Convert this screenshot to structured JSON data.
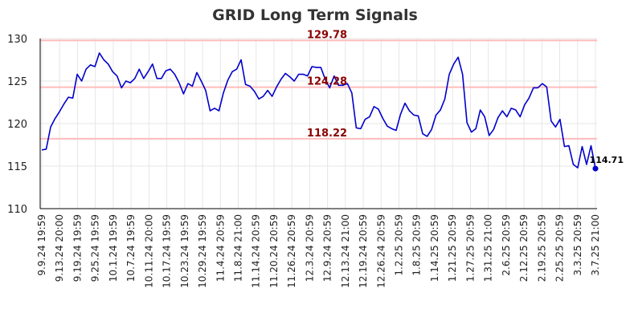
{
  "chart_data": {
    "type": "line",
    "title": "GRID Long Term Signals",
    "xlabel": "",
    "ylabel": "",
    "ylim": [
      110,
      130
    ],
    "yticks": [
      110,
      115,
      120,
      125,
      130
    ],
    "grid": true,
    "colors": {
      "line": "#0000cc",
      "reference_line": "#ffbbbb",
      "reference_label": "#8b0000",
      "grid": "#e6e6e6",
      "axis": "#000000"
    },
    "x_tick_labels": [
      "9.9.24 19:59",
      "9.13.24 20:00",
      "9.19.24 19:59",
      "9.25.24 19:59",
      "10.1.24 19:59",
      "10.7.24 19:59",
      "10.11.24 20:00",
      "10.17.24 19:59",
      "10.23.24 19:59",
      "10.29.24 19:59",
      "11.4.24 20:59",
      "11.8.24 21:00",
      "11.14.24 20:59",
      "11.20.24 20:59",
      "11.26.24 20:59",
      "12.3.24 20:59",
      "12.9.24 20:59",
      "12.13.24 21:00",
      "12.19.24 20:59",
      "12.26.24 20:59",
      "1.2.25 20:59",
      "1.8.25 20:59",
      "1.14.25 20:59",
      "1.21.25 20:59",
      "1.27.25 20:59",
      "1.31.25 21:00",
      "2.6.25 20:59",
      "2.12.25 20:59",
      "2.19.25 20:59",
      "2.25.25 20:59",
      "3.3.25 20:59",
      "3.7.25 21:00"
    ],
    "reference_lines": [
      {
        "value": 129.78,
        "label": "129.78"
      },
      {
        "value": 124.28,
        "label": "124.28"
      },
      {
        "value": 118.22,
        "label": "118.22"
      }
    ],
    "last_value": {
      "value": 114.71,
      "label": "114.71"
    },
    "series": [
      {
        "values": [
          116.9,
          117.0,
          119.6,
          120.6,
          121.4,
          122.3,
          123.1,
          123.0,
          125.8,
          125.0,
          126.4,
          126.9,
          126.7,
          128.3,
          127.5,
          127.0,
          126.1,
          125.6,
          124.2,
          125.0,
          124.8,
          125.3,
          126.4,
          125.3,
          126.1,
          127.0,
          125.3,
          125.3,
          126.2,
          126.4,
          125.8,
          124.8,
          123.5,
          124.7,
          124.4,
          126.0,
          125.0,
          123.9,
          121.5,
          121.8,
          121.5,
          123.6,
          125.1,
          126.1,
          126.4,
          127.5,
          124.6,
          124.4,
          123.8,
          122.9,
          123.2,
          123.9,
          123.2,
          124.3,
          125.2,
          125.9,
          125.5,
          125.0,
          125.8,
          125.8,
          125.6,
          126.7,
          126.6,
          126.6,
          125.2,
          124.2,
          125.6,
          124.5,
          124.5,
          124.7,
          123.6,
          119.5,
          119.4,
          120.5,
          120.8,
          122.0,
          121.7,
          120.6,
          119.7,
          119.4,
          119.2,
          121.1,
          122.4,
          121.5,
          121.0,
          120.9,
          118.8,
          118.5,
          119.3,
          121.0,
          121.6,
          122.9,
          125.8,
          127.0,
          127.8,
          125.8,
          120.1,
          119.0,
          119.4,
          121.6,
          120.8,
          118.6,
          119.3,
          120.7,
          121.5,
          120.8,
          121.8,
          121.6,
          120.8,
          122.2,
          123.0,
          124.2,
          124.2,
          124.7,
          124.3,
          120.3,
          119.6,
          120.5,
          117.3,
          117.4,
          115.2,
          114.8,
          117.3,
          115.2,
          117.4,
          114.71
        ]
      }
    ]
  }
}
